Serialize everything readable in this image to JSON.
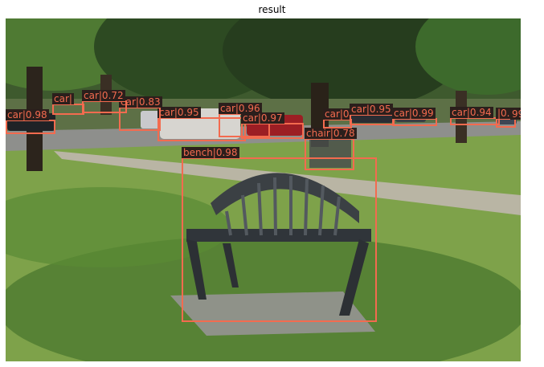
{
  "title": "result",
  "detections": [
    {
      "name": "bench-detection",
      "label": "bench|0.98"
    },
    {
      "name": "chair-detection",
      "label": "chair|0.78"
    },
    {
      "name": "car-detection-1",
      "label": "car|0.98"
    },
    {
      "name": "car-detection-2",
      "label": "car|0.95"
    },
    {
      "name": "car-detection-3",
      "label": "car|0.96"
    },
    {
      "name": "car-detection-4",
      "label": "car|0.97"
    },
    {
      "name": "car-detection-5",
      "label": "car|0.83"
    },
    {
      "name": "car-detection-6",
      "label": "car|0.72"
    },
    {
      "name": "car-detection-7",
      "label": "car|"
    },
    {
      "name": "car-detection-8",
      "label": "car|0"
    },
    {
      "name": "car-detection-9",
      "label": "car|0.95"
    },
    {
      "name": "car-detection-10",
      "label": "car|0.99"
    },
    {
      "name": "car-detection-11",
      "label": "car|0.94"
    },
    {
      "name": "car-detection-12",
      "label": "|0.96"
    },
    {
      "name": "car-detection-13",
      "label": "99"
    }
  ],
  "colors": {
    "box": "#f36b4f",
    "label_bg": "#2b1f1c"
  }
}
